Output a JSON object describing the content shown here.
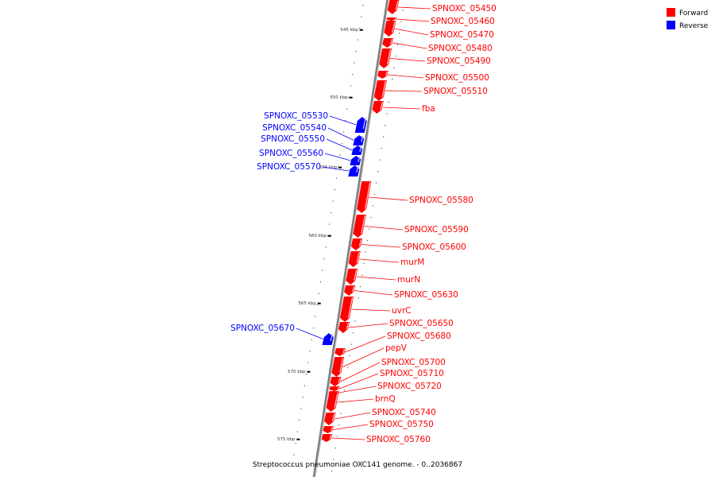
{
  "caption": "Streptococcus pneumoniae OXC141 genome. - 0..2036867",
  "legend": [
    {
      "label": "Forward",
      "color": "#ff0000"
    },
    {
      "label": "Reverse",
      "color": "#0000ff"
    }
  ],
  "colors": {
    "forward": "#ff0000",
    "reverse": "#0000ff",
    "backbone": "#808080"
  },
  "kbp_ticks": [
    "545 kbp",
    "550 kbp",
    "555 kbp",
    "560 kbp",
    "565 kbp",
    "570 kbp",
    "575 kbp"
  ],
  "features": [
    {
      "label": "SPNOXC_05450",
      "strand": "forward"
    },
    {
      "label": "SPNOXC_05460",
      "strand": "forward"
    },
    {
      "label": "SPNOXC_05470",
      "strand": "forward"
    },
    {
      "label": "SPNOXC_05480",
      "strand": "forward"
    },
    {
      "label": "SPNOXC_05490",
      "strand": "forward"
    },
    {
      "label": "SPNOXC_05500",
      "strand": "forward"
    },
    {
      "label": "SPNOXC_05510",
      "strand": "forward"
    },
    {
      "label": "fba",
      "strand": "forward"
    },
    {
      "label": "SPNOXC_05530",
      "strand": "reverse"
    },
    {
      "label": "SPNOXC_05540",
      "strand": "reverse"
    },
    {
      "label": "SPNOXC_05550",
      "strand": "reverse"
    },
    {
      "label": "SPNOXC_05560",
      "strand": "reverse"
    },
    {
      "label": "SPNOXC_05570",
      "strand": "reverse"
    },
    {
      "label": "SPNOXC_05580",
      "strand": "forward"
    },
    {
      "label": "SPNOXC_05590",
      "strand": "forward"
    },
    {
      "label": "SPNOXC_05600",
      "strand": "forward"
    },
    {
      "label": "murM",
      "strand": "forward"
    },
    {
      "label": "murN",
      "strand": "forward"
    },
    {
      "label": "SPNOXC_05630",
      "strand": "forward"
    },
    {
      "label": "uvrC",
      "strand": "forward"
    },
    {
      "label": "SPNOXC_05650",
      "strand": "forward"
    },
    {
      "label": "SPNOXC_05670",
      "strand": "reverse"
    },
    {
      "label": "SPNOXC_05680",
      "strand": "forward"
    },
    {
      "label": "pepV",
      "strand": "forward"
    },
    {
      "label": "SPNOXC_05700",
      "strand": "forward"
    },
    {
      "label": "SPNOXC_05710",
      "strand": "forward"
    },
    {
      "label": "SPNOXC_05720",
      "strand": "forward"
    },
    {
      "label": "brnQ",
      "strand": "forward"
    },
    {
      "label": "SPNOXC_05740",
      "strand": "forward"
    },
    {
      "label": "SPNOXC_05750",
      "strand": "forward"
    },
    {
      "label": "SPNOXC_05760",
      "strand": "forward"
    }
  ]
}
